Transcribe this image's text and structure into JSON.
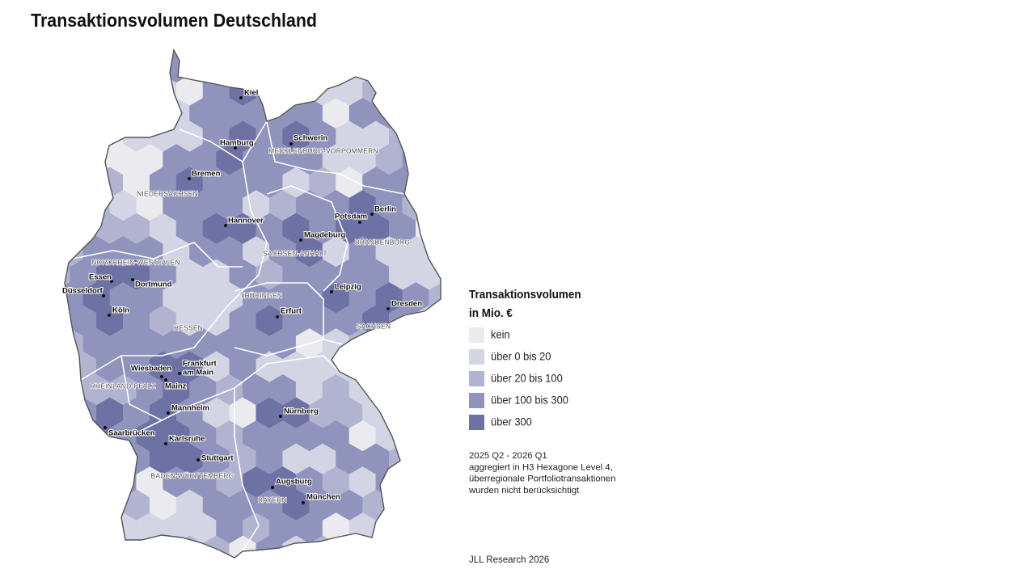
{
  "title": "Transaktionsvolumen Deutschland",
  "legend": {
    "title_lines": [
      "Transaktionsvolumen",
      "in Mio. €"
    ],
    "items": [
      {
        "label": "kein",
        "color": "#ebebef"
      },
      {
        "label": "über 0 bis 20",
        "color": "#d3d4e4"
      },
      {
        "label": "über 20 bis 100",
        "color": "#b1b3d1"
      },
      {
        "label": "über 100 bis 300",
        "color": "#9094bd"
      },
      {
        "label": "über 300",
        "color": "#6d71a4"
      }
    ]
  },
  "note_lines": [
    "2025 Q2 - 2026 Q1",
    "aggregiert in H3 Hexagone Level 4,",
    "überregionale Portfoliotransaktionen",
    "wurden nicht berücksichtigt"
  ],
  "source": "JLL Research 2026",
  "cities": [
    {
      "name_lines": [
        "Kiel"
      ]
    },
    {
      "name_lines": [
        "Hamburg"
      ]
    },
    {
      "name_lines": [
        "Schwerin"
      ]
    },
    {
      "name_lines": [
        "Bremen"
      ]
    },
    {
      "name_lines": [
        "Hannover"
      ]
    },
    {
      "name_lines": [
        "Berlin"
      ]
    },
    {
      "name_lines": [
        "Potsdam"
      ]
    },
    {
      "name_lines": [
        "Magdeburg"
      ]
    },
    {
      "name_lines": [
        "Essen"
      ]
    },
    {
      "name_lines": [
        "Dortmund"
      ]
    },
    {
      "name_lines": [
        "Düsseldorf"
      ]
    },
    {
      "name_lines": [
        "Köln"
      ]
    },
    {
      "name_lines": [
        "Leipzig"
      ]
    },
    {
      "name_lines": [
        "Dresden"
      ]
    },
    {
      "name_lines": [
        "Erfurt"
      ]
    },
    {
      "name_lines": [
        "Frankfurt",
        "am Main"
      ]
    },
    {
      "name_lines": [
        "Wiesbaden"
      ]
    },
    {
      "name_lines": [
        "Mainz"
      ]
    },
    {
      "name_lines": [
        "Mannheim"
      ]
    },
    {
      "name_lines": [
        "Saarbrücken"
      ]
    },
    {
      "name_lines": [
        "Karlsruhe"
      ]
    },
    {
      "name_lines": [
        "Stuttgart"
      ]
    },
    {
      "name_lines": [
        "Nürnberg"
      ]
    },
    {
      "name_lines": [
        "Augsburg"
      ]
    },
    {
      "name_lines": [
        "München"
      ]
    }
  ],
  "states": [
    "MECKLENBURG-VORPOMMERN",
    "NIEDERSACHSEN",
    "BRANDENBURG",
    "SACHSEN-ANHALT",
    "NORDRHEIN-WESTFALEN",
    "THÜRINGEN",
    "SACHSEN",
    "HESSEN",
    "RHEINLAND-PFALZ",
    "BADEN-WÜRTTEMBERG",
    "BAYERN"
  ]
}
